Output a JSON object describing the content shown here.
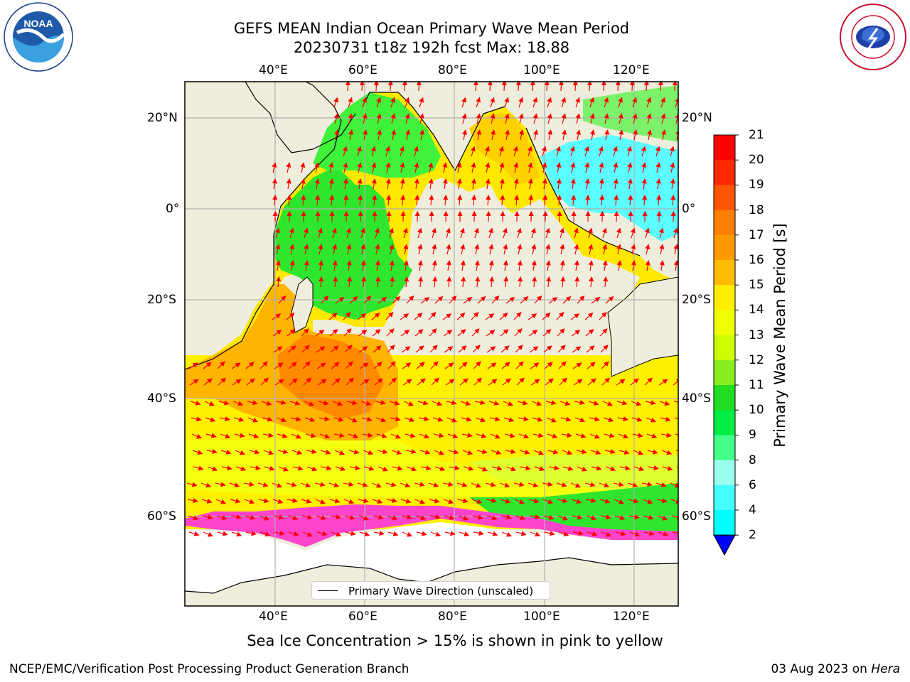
{
  "title": {
    "line1": "GEFS MEAN Indian Ocean Primary Wave Mean Period",
    "line2": "20230731 t18z 192h fcst   Max: 18.88"
  },
  "logos": {
    "noaa": "NOAA",
    "nws": "NATIONAL WEATHER SERVICE"
  },
  "map": {
    "lon_ticks": [
      "40°E",
      "60°E",
      "80°E",
      "100°E",
      "120°E"
    ],
    "lat_ticks": [
      "20°N",
      "0°",
      "20°S",
      "40°S",
      "60°S"
    ],
    "legend_label": "Primary Wave Direction (unscaled)",
    "colors": {
      "land": "#efeedc",
      "green": "#2ee62e",
      "light_green": "#7cf26a",
      "yellow": "#fff000",
      "orange": "#ffa500",
      "dark_orange": "#ff7f00",
      "cyan": "#5cffff",
      "arrow": "#ff0000"
    }
  },
  "colorbar": {
    "title": "Primary Wave Mean Period [s]",
    "ticks": [
      "21",
      "20",
      "19",
      "18",
      "17",
      "16",
      "15",
      "14",
      "13",
      "12",
      "11",
      "10",
      "9",
      "8",
      "6",
      "4",
      "2"
    ],
    "colors": [
      "#ff0000",
      "#ff2a00",
      "#ff5500",
      "#ff7f00",
      "#ff9900",
      "#ffbb00",
      "#ffee00",
      "#eeff00",
      "#ccff00",
      "#88ee22",
      "#22dd22",
      "#00ee44",
      "#44ff88",
      "#99ffee",
      "#44ffff",
      "#00ffff",
      "#0088ff",
      "#0000ff"
    ]
  },
  "footer": {
    "note": "Sea Ice Concentration > 15% is shown in pink to yellow",
    "credit": "NCEP/EMC/Verification Post Processing Product Generation Branch",
    "date": "03 Aug 2023 on",
    "machine": "Hera"
  }
}
